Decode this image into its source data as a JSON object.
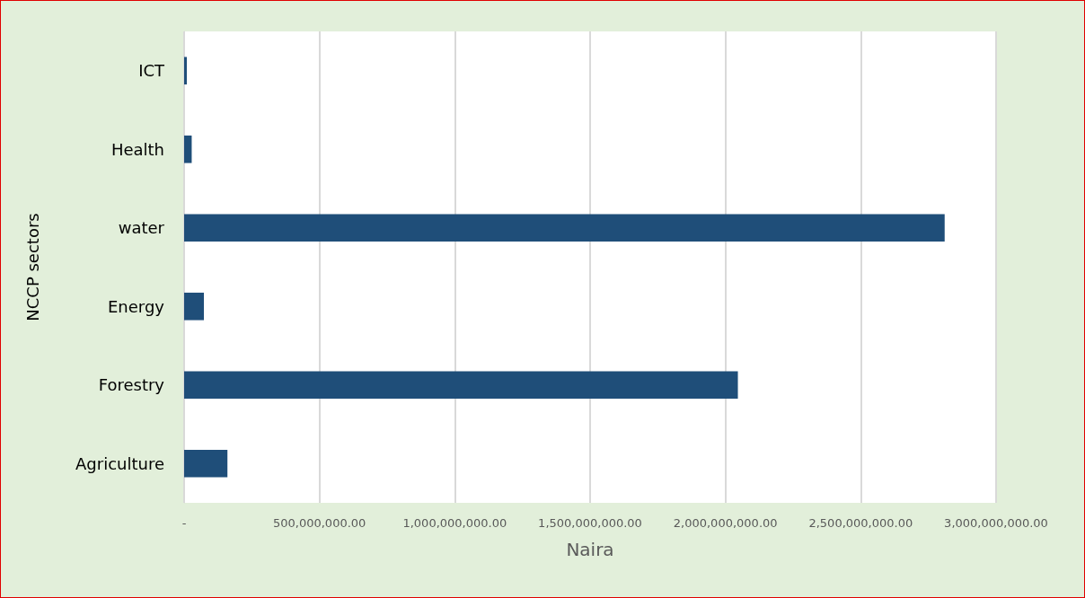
{
  "chart_data": {
    "type": "bar",
    "orientation": "horizontal",
    "xlabel": "Naira",
    "ylabel": "NCCP sectors",
    "categories": [
      "ICT",
      "Health",
      "water",
      "Energy",
      "Forestry",
      "Agriculture"
    ],
    "values": [
      10000000,
      28000000,
      2810000000,
      73000000,
      2046000000,
      160000000
    ],
    "color": "#1f4e79",
    "xlim": [
      0,
      3000000000
    ],
    "xticks": [
      {
        "value": 0,
        "label": "-"
      },
      {
        "value": 500000000,
        "label": "500,000,000.00"
      },
      {
        "value": 1000000000,
        "label": "1,000,000,000.00"
      },
      {
        "value": 1500000000,
        "label": "1,500,000,000.00"
      },
      {
        "value": 2000000000,
        "label": "2,000,000,000.00"
      },
      {
        "value": 2500000000,
        "label": "2,500,000,000.00"
      },
      {
        "value": 3000000000,
        "label": "3,000,000,000.00"
      }
    ],
    "grid": "x"
  }
}
